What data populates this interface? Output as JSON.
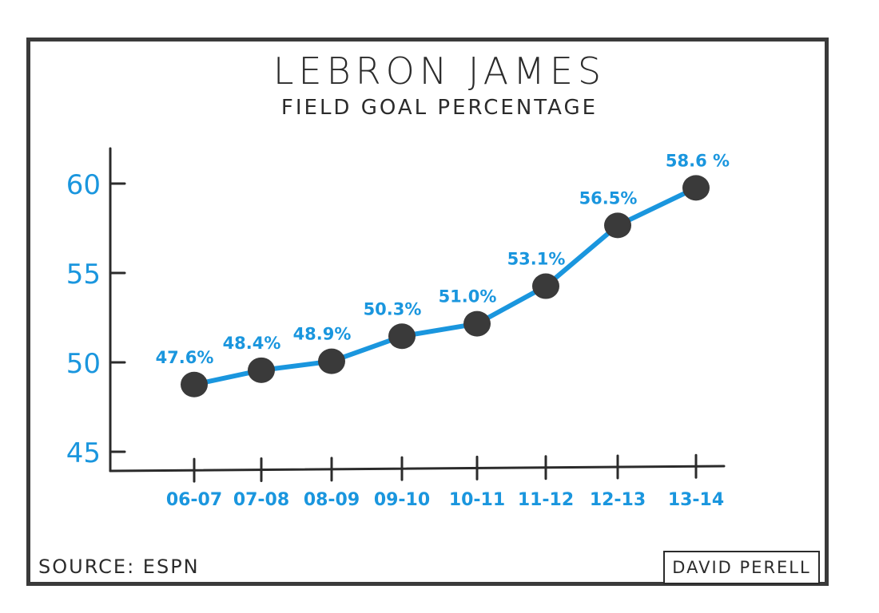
{
  "chart_data": {
    "type": "line",
    "title": "LEBRON JAMES",
    "subtitle": "FIELD GOAL PERCENTAGE",
    "xlabel": "",
    "ylabel": "",
    "categories": [
      "06-07",
      "07-08",
      "08-09",
      "09-10",
      "10-11",
      "11-12",
      "12-13",
      "13-14"
    ],
    "series": [
      {
        "values": [
          47.6,
          48.4,
          48.9,
          50.3,
          51.0,
          53.1,
          56.5,
          58.6
        ]
      }
    ],
    "data_labels": [
      "47.6%",
      "48.4%",
      "48.9%",
      "50.3%",
      "51.0%",
      "53.1%",
      "56.5%",
      "58.6 %"
    ],
    "yticks": [
      45,
      50,
      55,
      60
    ],
    "grid": false,
    "colors": {
      "line": "#1a96de",
      "marker": "#3a3a3a",
      "axis": "#2b2b2b",
      "labels": "#1a96de"
    }
  },
  "footer": {
    "source": "SOURCE: ESPN",
    "credit": "DAVID PERELL"
  }
}
